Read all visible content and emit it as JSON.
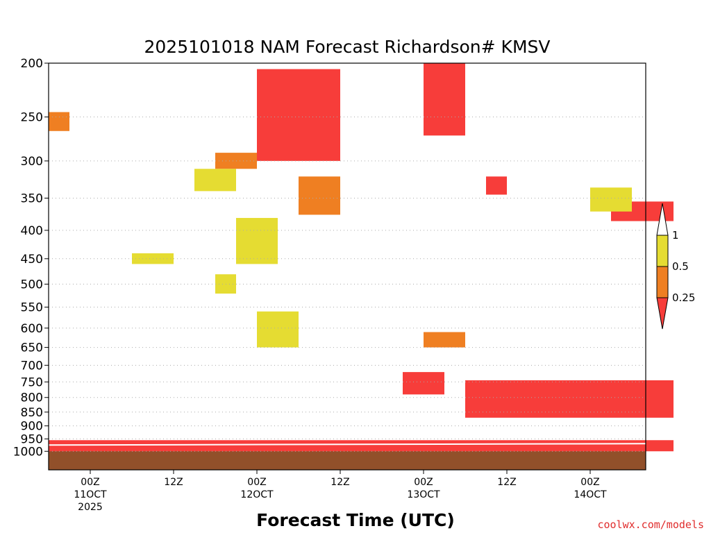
{
  "chart_data": {
    "type": "heatmap",
    "title": "2025101018 NAM Forecast Richardson# KMSV",
    "xlabel": "Forecast Time (UTC)",
    "ylabel": "",
    "y_scale": "log-pressure",
    "y_axis_reversed": true,
    "ylim": [
      1000,
      200
    ],
    "y_ticks": [
      "200",
      "250",
      "300",
      "350",
      "400",
      "450",
      "500",
      "550",
      "600",
      "650",
      "700",
      "750",
      "800",
      "850",
      "900",
      "950",
      "1000"
    ],
    "x_start": "2025-10-10T18Z",
    "x_end": "2025-10-14T12Z",
    "x_ticks": [
      {
        "time": "2025-10-11T00Z",
        "lines": [
          "00Z",
          "11OCT",
          "2025"
        ]
      },
      {
        "time": "2025-10-11T12Z",
        "lines": [
          "12Z"
        ]
      },
      {
        "time": "2025-10-12T00Z",
        "lines": [
          "00Z",
          "12OCT"
        ]
      },
      {
        "time": "2025-10-12T12Z",
        "lines": [
          "12Z"
        ]
      },
      {
        "time": "2025-10-13T00Z",
        "lines": [
          "00Z",
          "13OCT"
        ]
      },
      {
        "time": "2025-10-13T12Z",
        "lines": [
          "12Z"
        ]
      },
      {
        "time": "2025-10-14T00Z",
        "lines": [
          "00Z",
          "14OCT"
        ]
      }
    ],
    "grid": "dotted horizontal at pressure ticks",
    "colorbar": {
      "placement": "right",
      "levels": [
        "1",
        "0.5",
        "0.25"
      ],
      "bins": [
        {
          "range": "0.5-1",
          "color": "#e5dc32"
        },
        {
          "range": "0.25-0.5",
          "color": "#ef7f22"
        },
        {
          "range": "<0.25",
          "color": "#f73d3a"
        }
      ]
    },
    "ground_color": "#91502a",
    "regions": [
      {
        "level": "lt025",
        "t0": "2025-10-10T18Z",
        "t1": "2025-10-14T12Z",
        "p_top": 955,
        "p_bot": 1000
      },
      {
        "level": "lt025",
        "t0": "2025-10-12T00Z",
        "t1": "2025-10-12T12Z",
        "p_top": 205,
        "p_bot": 300
      },
      {
        "level": "lt025",
        "t0": "2025-10-13T06Z",
        "t1": "2025-10-14T12Z",
        "p_top": 745,
        "p_bot": 870
      },
      {
        "level": "lt025",
        "t0": "2025-10-13T00Z",
        "t1": "2025-10-13T06Z",
        "p_top": 200,
        "p_bot": 270
      },
      {
        "level": "lt025",
        "t0": "2025-10-13T09Z",
        "t1": "2025-10-13T12Z",
        "p_top": 320,
        "p_bot": 345
      },
      {
        "level": "lt025",
        "t0": "2025-10-14T03Z",
        "t1": "2025-10-14T12Z",
        "p_top": 355,
        "p_bot": 385
      },
      {
        "level": "lt025",
        "t0": "2025-10-12T21Z",
        "t1": "2025-10-13T03Z",
        "p_top": 720,
        "p_bot": 790
      },
      {
        "level": "025_05",
        "t0": "2025-10-11T18Z",
        "t1": "2025-10-12T00Z",
        "p_top": 290,
        "p_bot": 310
      },
      {
        "level": "025_05",
        "t0": "2025-10-12T06Z",
        "t1": "2025-10-12T12Z",
        "p_top": 320,
        "p_bot": 375
      },
      {
        "level": "025_05",
        "t0": "2025-10-10T18Z",
        "t1": "2025-10-10T21Z",
        "p_top": 245,
        "p_bot": 265
      },
      {
        "level": "025_05",
        "t0": "2025-10-13T00Z",
        "t1": "2025-10-13T06Z",
        "p_top": 610,
        "p_bot": 650
      },
      {
        "level": "05_1",
        "t0": "2025-10-11T15Z",
        "t1": "2025-10-11T21Z",
        "p_top": 310,
        "p_bot": 340
      },
      {
        "level": "05_1",
        "t0": "2025-10-11T21Z",
        "t1": "2025-10-12T03Z",
        "p_top": 380,
        "p_bot": 460
      },
      {
        "level": "05_1",
        "t0": "2025-10-11T06Z",
        "t1": "2025-10-11T12Z",
        "p_top": 440,
        "p_bot": 460
      },
      {
        "level": "05_1",
        "t0": "2025-10-11T18Z",
        "t1": "2025-10-11T21Z",
        "p_top": 480,
        "p_bot": 520
      },
      {
        "level": "05_1",
        "t0": "2025-10-14T00Z",
        "t1": "2025-10-14T06Z",
        "p_top": 335,
        "p_bot": 370
      },
      {
        "level": "05_1",
        "t0": "2025-10-12T00Z",
        "t1": "2025-10-12T06Z",
        "p_top": 560,
        "p_bot": 650
      }
    ]
  },
  "footer": {
    "credit": "coolwx.com/models"
  }
}
